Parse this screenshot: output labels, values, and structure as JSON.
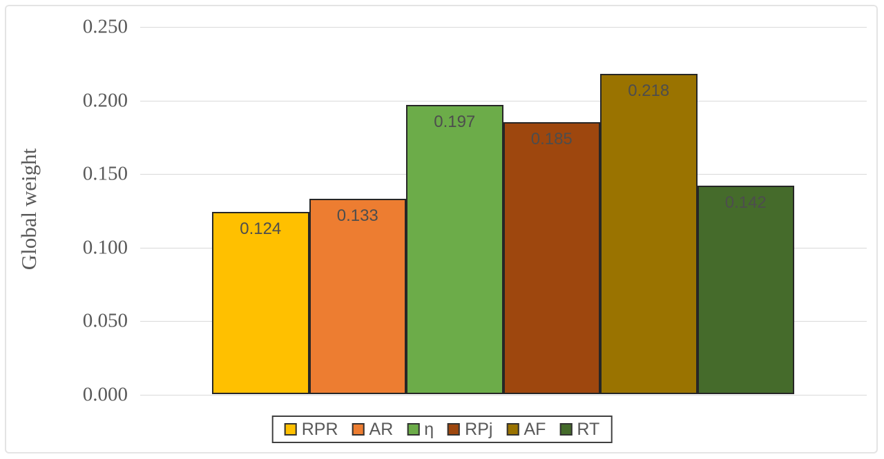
{
  "chart_data": {
    "type": "bar",
    "title": "",
    "xlabel": "",
    "ylabel": "Global weight",
    "categories": [
      "RPR",
      "AR",
      "η",
      "RPj",
      "AF",
      "RT"
    ],
    "values": [
      0.124,
      0.133,
      0.197,
      0.185,
      0.218,
      0.142
    ],
    "value_labels": [
      "0.124",
      "0.133",
      "0.197",
      "0.185",
      "0.218",
      "0.142"
    ],
    "ytick_labels": [
      "0.000",
      "0.050",
      "0.100",
      "0.150",
      "0.200",
      "0.250"
    ],
    "ytick_values": [
      0.0,
      0.05,
      0.1,
      0.15,
      0.2,
      0.25
    ],
    "ylim": [
      0.0,
      0.25
    ],
    "grid": true,
    "legend_position": "bottom",
    "bar_colors": [
      "#ffc000",
      "#ed7d31",
      "#6cac49",
      "#9e470e",
      "#9a7300",
      "#456b2b"
    ],
    "bar_border_color": "#262626",
    "gridline_color": "#d9d9d9",
    "axis_text_color": "#595959",
    "label_text_color": "#4d4d4d",
    "legend_border_color": "#404040",
    "figure_border_color": "#e4e4e4"
  }
}
